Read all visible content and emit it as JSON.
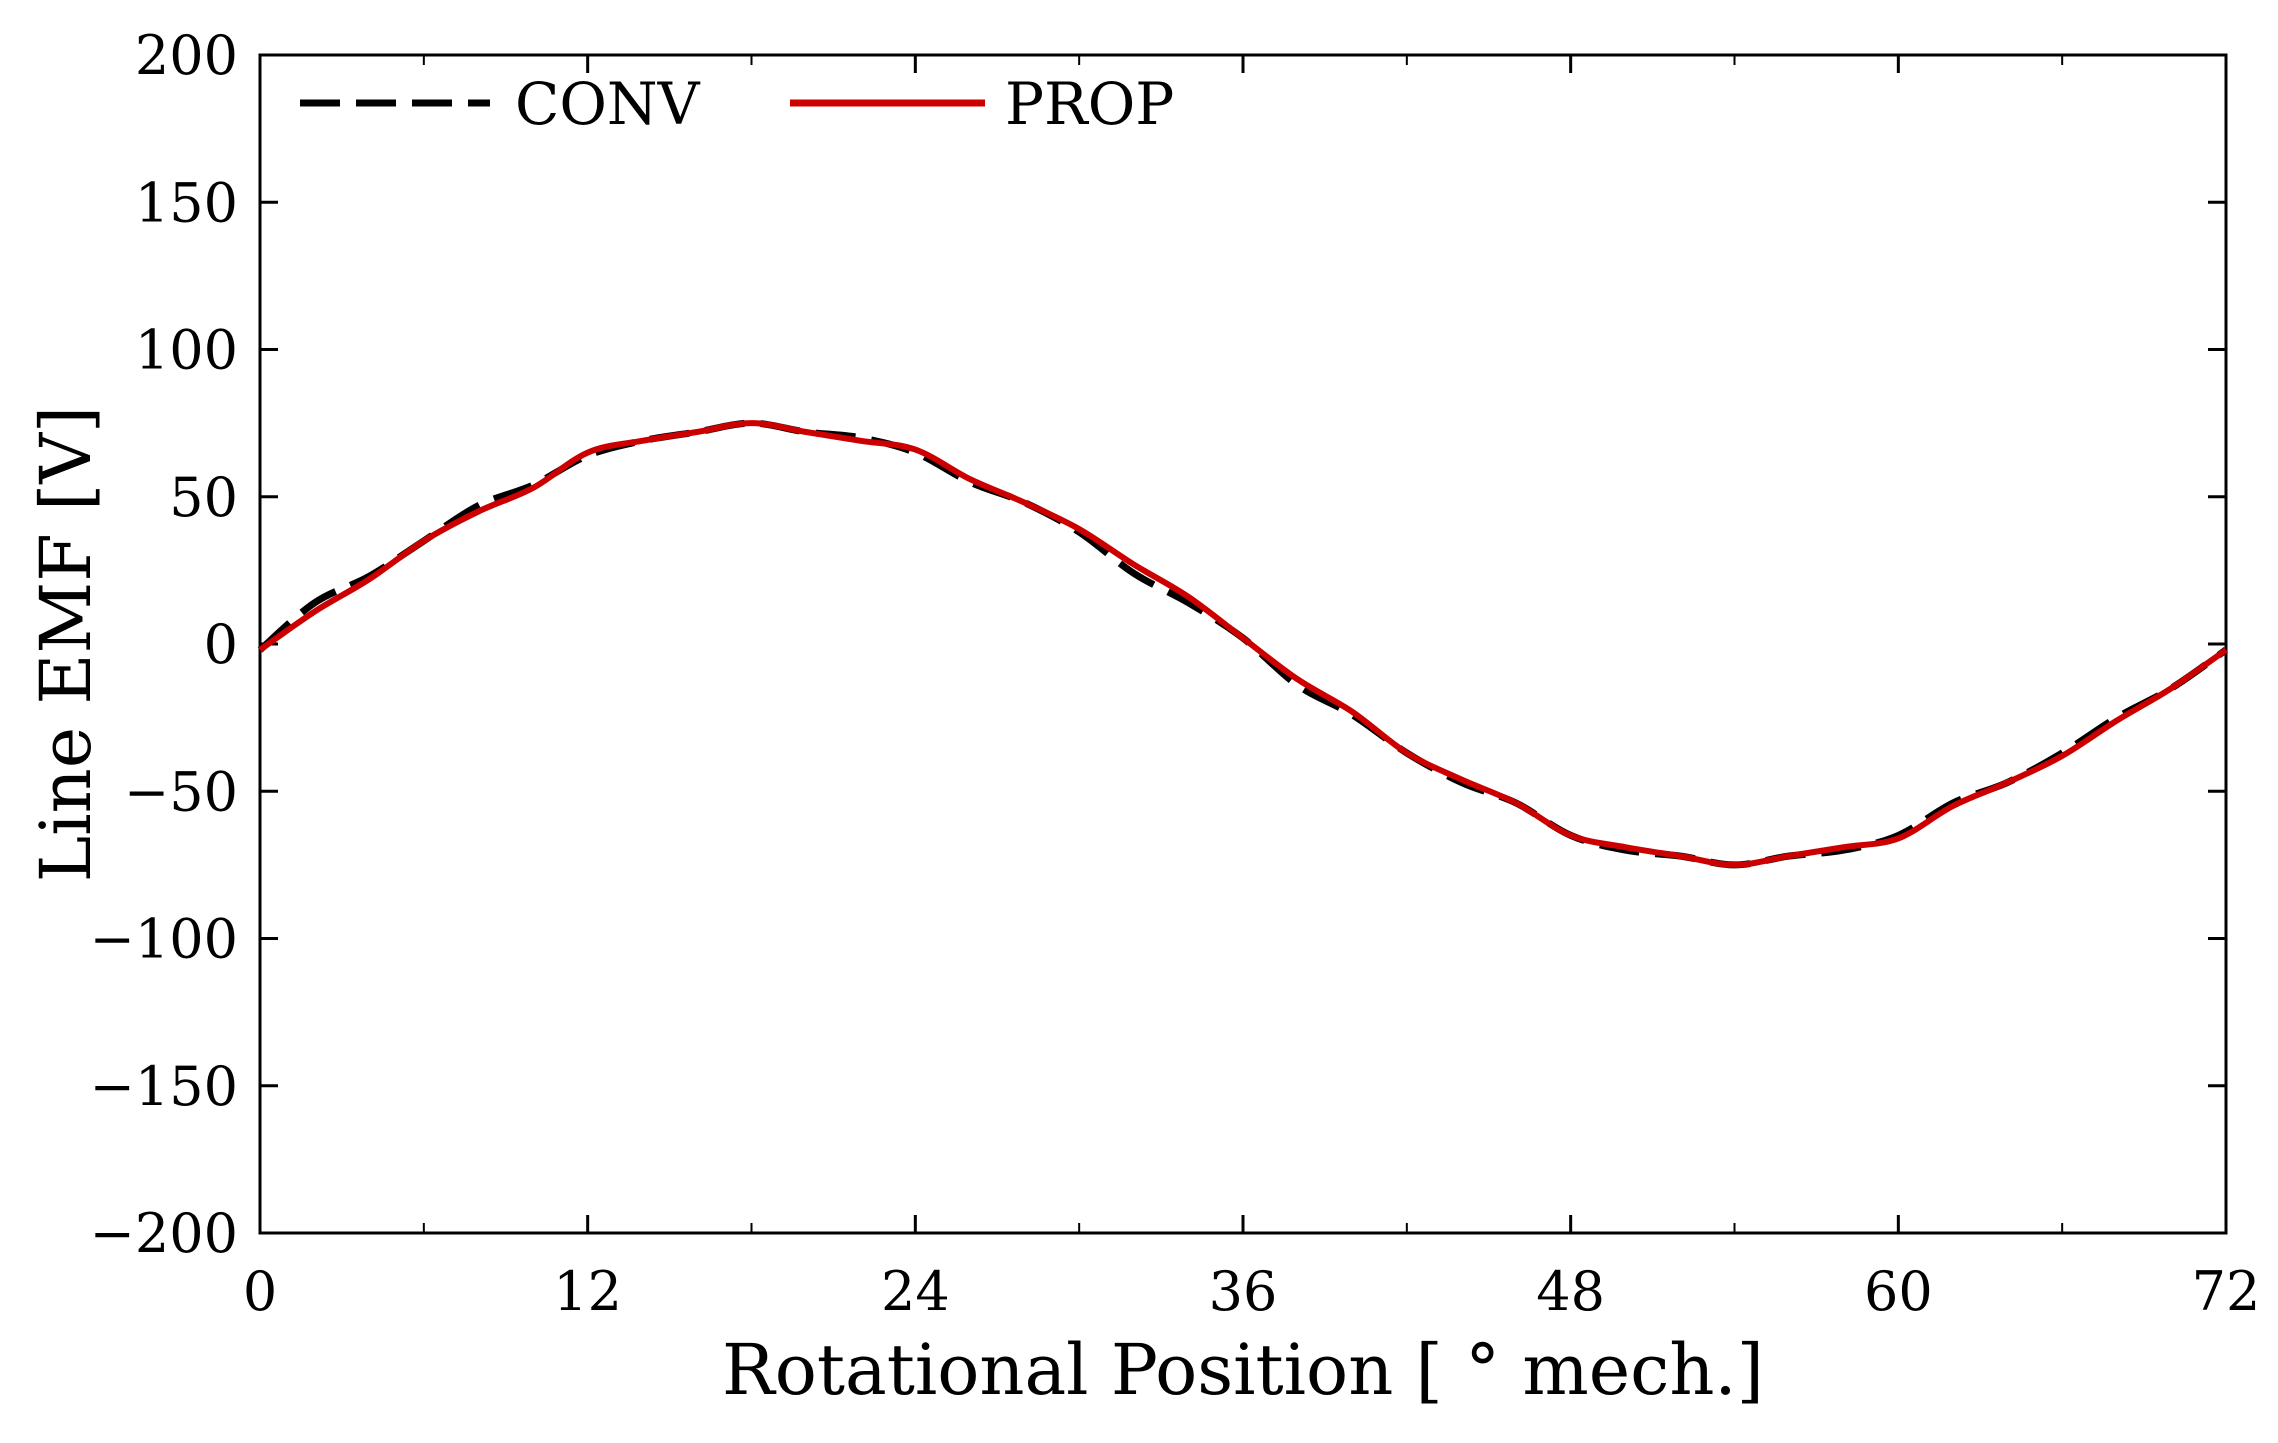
{
  "chart_data": {
    "type": "line",
    "title": "",
    "xlabel": "Rotational Position [ ° mech.]",
    "ylabel": "Line EMF [V]",
    "xlim": [
      0,
      72
    ],
    "ylim": [
      -200,
      200
    ],
    "xticks": [
      0,
      12,
      24,
      36,
      48,
      60,
      72
    ],
    "xtick_labels": [
      "0",
      "12",
      "24",
      "36",
      "48",
      "60",
      "72"
    ],
    "xminor": [
      6,
      18,
      30,
      42,
      54,
      66
    ],
    "yticks": [
      200,
      150,
      100,
      50,
      0,
      -50,
      -100,
      -150,
      -200
    ],
    "ytick_labels": [
      "200",
      "150",
      "100",
      "50",
      "0",
      "−50",
      "−100",
      "−150",
      "−200"
    ],
    "grid": false,
    "legend_position": "top-left",
    "x": [
      0,
      2,
      4,
      6,
      8,
      10,
      12,
      14,
      16,
      18,
      20,
      22,
      24,
      26,
      28,
      30,
      32,
      34,
      36,
      38,
      40,
      42,
      44,
      46,
      48,
      50,
      52,
      54,
      56,
      58,
      60,
      62,
      64,
      66,
      68,
      70,
      72
    ],
    "series": [
      {
        "name": "CONV",
        "color": "#000000",
        "style": "dashed",
        "values": [
          -2,
          14,
          23,
          35,
          47,
          54,
          64,
          69,
          72,
          75,
          72,
          70,
          65,
          55,
          48,
          38,
          24,
          14,
          2,
          -14,
          -24,
          -37,
          -47,
          -54,
          -65,
          -70,
          -72,
          -75,
          -72,
          -70,
          -65,
          -54,
          -47,
          -37,
          -25,
          -15,
          -2
        ]
      },
      {
        "name": "PROP",
        "color": "#cc0000",
        "style": "solid",
        "values": [
          -2,
          11,
          22,
          35,
          45,
          53,
          65,
          69,
          72,
          75,
          72,
          69,
          66,
          56,
          48,
          39,
          27,
          16,
          2,
          -12,
          -23,
          -37,
          -46,
          -54,
          -65,
          -69,
          -72,
          -75,
          -72,
          -69,
          -66,
          -55,
          -47,
          -38,
          -26,
          -15,
          -2
        ]
      }
    ]
  }
}
